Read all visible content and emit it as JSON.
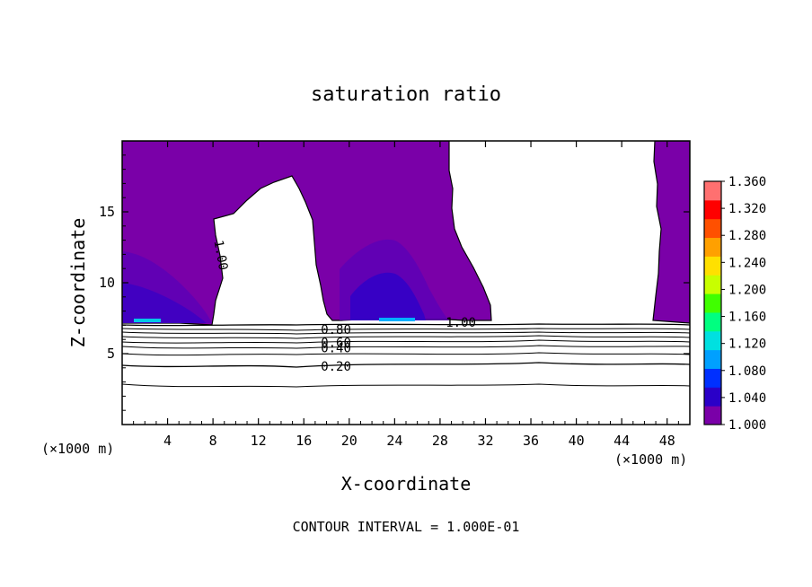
{
  "chart_data": {
    "type": "heatmap",
    "title": "saturation ratio",
    "xlabel": "X-coordinate",
    "ylabel": "Z-coordinate",
    "x_unit_left": "(×1000 m)",
    "x_unit_right": "(×1000 m)",
    "xlim": [
      0,
      50
    ],
    "ylim": [
      0,
      20
    ],
    "x_ticks": [
      4,
      8,
      12,
      16,
      20,
      24,
      28,
      32,
      36,
      40,
      44,
      48
    ],
    "y_ticks": [
      5,
      10,
      15
    ],
    "colorbar": {
      "min": 1.0,
      "max": 1.36,
      "tick_labels": [
        "1.360",
        "1.320",
        "1.280",
        "1.240",
        "1.200",
        "1.160",
        "1.120",
        "1.080",
        "1.040",
        "1.000"
      ],
      "colors": [
        "#7a00a8",
        "#2a00c8",
        "#0030ff",
        "#00a0ff",
        "#00e0e0",
        "#00ff80",
        "#40ff00",
        "#c8ff00",
        "#ffe000",
        "#ffa000",
        "#ff5000",
        "#ff0000",
        "#ff7070"
      ]
    },
    "contour_labels": [
      {
        "text": "1.00",
        "x": 8.5,
        "y": 13
      },
      {
        "text": "1.00",
        "x": 28.5,
        "y": 7.2
      },
      {
        "text": "0.80",
        "x": 17.5,
        "y": 6.7
      },
      {
        "text": "0.60",
        "x": 17.5,
        "y": 5.8
      },
      {
        "text": "0.40",
        "x": 17.5,
        "y": 5.4
      },
      {
        "text": "0.20",
        "x": 17.5,
        "y": 4.1
      }
    ],
    "contour_interval_label": "CONTOUR INTERVAL =",
    "contour_interval_value": "1.000E-01"
  },
  "colors": {
    "supersat_base": "#7a00a8",
    "background": "#ffffff",
    "axis": "#000000"
  }
}
